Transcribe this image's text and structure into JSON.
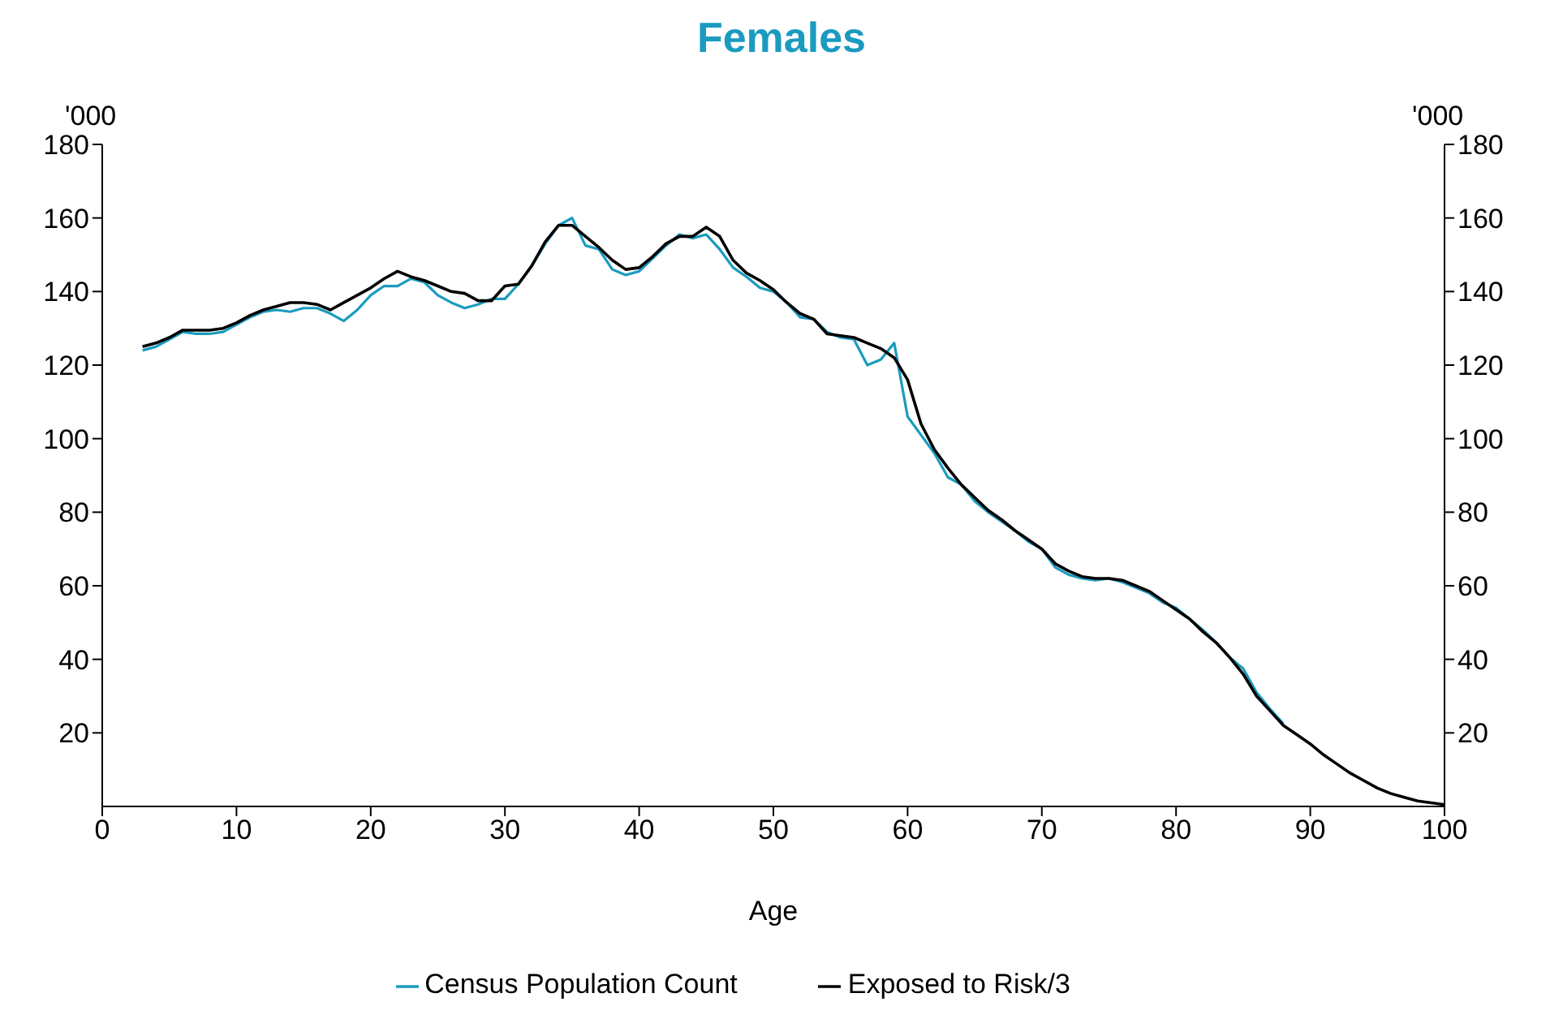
{
  "chart_data": {
    "type": "line",
    "title": "Females",
    "xlabel": "Age",
    "ylabel": "'000",
    "y2label": "'000",
    "x": [
      3,
      4,
      5,
      6,
      7,
      8,
      9,
      10,
      11,
      12,
      13,
      14,
      15,
      16,
      17,
      18,
      19,
      20,
      21,
      22,
      23,
      24,
      25,
      26,
      27,
      28,
      29,
      30,
      31,
      32,
      33,
      34,
      35,
      36,
      37,
      38,
      39,
      40,
      41,
      42,
      43,
      44,
      45,
      46,
      47,
      48,
      49,
      50,
      51,
      52,
      53,
      54,
      55,
      56,
      57,
      58,
      59,
      60,
      61,
      62,
      63,
      64,
      65,
      66,
      67,
      68,
      69,
      70,
      71,
      72,
      73,
      74,
      75,
      76,
      77,
      78,
      79,
      80,
      81,
      82,
      83,
      84,
      85,
      86,
      87,
      88,
      89,
      90,
      91,
      92,
      93,
      94,
      95,
      96,
      97,
      98,
      99,
      100
    ],
    "series": [
      {
        "name": "Census Population Count",
        "color": "#1a9bbf",
        "values": [
          124,
          125,
          127,
          129,
          128.5,
          128.5,
          129,
          131,
          133,
          134.5,
          135,
          134.5,
          135.5,
          135.5,
          134,
          132,
          135,
          139,
          141.5,
          141.5,
          143.5,
          142.5,
          139,
          137,
          135.5,
          136.5,
          138,
          138,
          142,
          147,
          153,
          158,
          160,
          152.5,
          151.5,
          146,
          144.5,
          145.5,
          149,
          152.5,
          155.5,
          154.5,
          155.5,
          151.5,
          146.5,
          144,
          141,
          140,
          137,
          133,
          132.5,
          129,
          127.5,
          127,
          120,
          121.5,
          126,
          106,
          101,
          96,
          89.5,
          87.5,
          83,
          80,
          77.5,
          75,
          72,
          70,
          65,
          63,
          62,
          61.5,
          62,
          61,
          59.5,
          58,
          55.5,
          54,
          51,
          48,
          44.5,
          40.5,
          37.5,
          31,
          26.5,
          22.5,
          null,
          null,
          null,
          null,
          null,
          null,
          null,
          null,
          null,
          null,
          null,
          null
        ]
      },
      {
        "name": "Exposed to Risk/3",
        "color": "#000000",
        "values": [
          125,
          126,
          127.5,
          129.5,
          129.5,
          129.5,
          130,
          131.5,
          133.5,
          135,
          136,
          137,
          137,
          136.5,
          135,
          137,
          139,
          141,
          143.5,
          145.5,
          144,
          143,
          141.5,
          140,
          139.5,
          137.5,
          137.5,
          141.5,
          142,
          147,
          153.5,
          158,
          158,
          155,
          152,
          148.5,
          146,
          146.5,
          149.5,
          153,
          155,
          155,
          157.5,
          155,
          148.5,
          145,
          143,
          140.5,
          137,
          134,
          132.5,
          128.5,
          128,
          127.5,
          126,
          124.5,
          122,
          116,
          104,
          97,
          92,
          87.5,
          84,
          80.5,
          78,
          75,
          72.5,
          70,
          66,
          64,
          62.5,
          62,
          62,
          61.5,
          60,
          58.5,
          56,
          53.5,
          51,
          47.5,
          44.5,
          40.5,
          36,
          30,
          26,
          22,
          19.5,
          17,
          14,
          11.5,
          9,
          7,
          5,
          3.5,
          2.5,
          1.5,
          1,
          0.5
        ]
      }
    ],
    "xlim": [
      0,
      100
    ],
    "xticks": [
      0,
      10,
      20,
      30,
      40,
      50,
      60,
      70,
      80,
      90,
      100
    ],
    "ylim": [
      0,
      180
    ],
    "yticks": [
      20,
      40,
      60,
      80,
      100,
      120,
      140,
      160,
      180
    ],
    "y2lim": [
      0,
      180
    ],
    "y2ticks": [
      20,
      40,
      60,
      80,
      100,
      120,
      140,
      160,
      180
    ],
    "grid": false,
    "legend": "bottom",
    "marker": "none",
    "line_style": "solid"
  }
}
